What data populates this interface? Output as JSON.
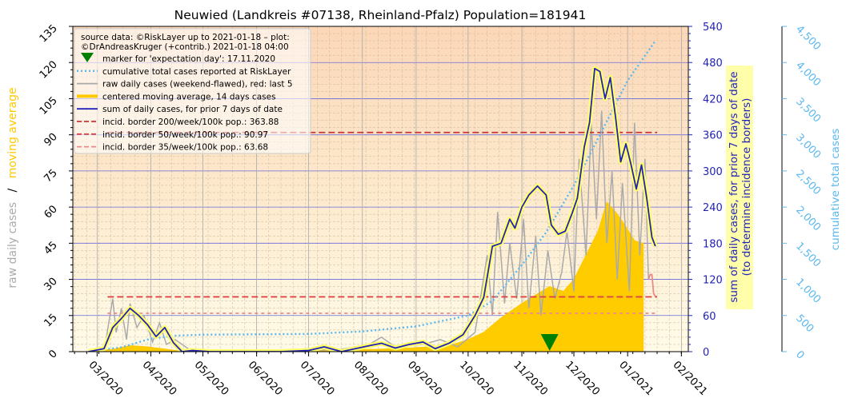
{
  "chart_data": {
    "type": "line",
    "title": "Neuwied (Landkreis #07138, Rheinland-Pfalz) Population=181941",
    "source_note": "source data: ©RiskLayer up to 2021-01-18 – plot:\n©DrAndreasKruger (+contrib.) 2021-01-18 04:00",
    "ylabel_left_part1": "raw daily cases",
    "ylabel_left_sep": "/",
    "ylabel_left_part2": "moving average",
    "ylabel_right1_line1": "sum of daily cases, for prior 7 days of date",
    "ylabel_right1_line2": "(to determine incidence borders)",
    "ylabel_right2": "cumulative total cases",
    "x_ticks": [
      "03/2020",
      "04/2020",
      "05/2020",
      "06/2020",
      "07/2020",
      "08/2020",
      "09/2020",
      "10/2020",
      "11/2020",
      "12/2020",
      "01/2021",
      "02/2021"
    ],
    "yticks_left": [
      "0",
      "15",
      "30",
      "45",
      "60",
      "75",
      "90",
      "105",
      "120",
      "135"
    ],
    "yticks_right1": [
      "0",
      "60",
      "120",
      "180",
      "240",
      "300",
      "360",
      "420",
      "480",
      "540"
    ],
    "yticks_right2": [
      "0",
      "500",
      "1,000",
      "1,500",
      "2,000",
      "2,500",
      "3,000",
      "3,500",
      "4,000",
      "4,500"
    ],
    "ylim_left": [
      0,
      135
    ],
    "ylim_right1": [
      0,
      540
    ],
    "ylim_right2": [
      0,
      4500
    ],
    "legend": [
      {
        "label": "marker for 'expectation day': 17.11.2020",
        "kind": "marker",
        "color": "#008000"
      },
      {
        "label": "cumulative total cases reported at RiskLayer",
        "kind": "dotted",
        "color": "#5bb8f0"
      },
      {
        "label": "raw daily cases (weekend-flawed), red: last 5",
        "kind": "line",
        "color": "#aaaaaa"
      },
      {
        "label": "centered moving average, 14 days cases",
        "kind": "thick",
        "color": "#ffc800"
      },
      {
        "label": "sum of daily cases, for prior 7 days of date",
        "kind": "line",
        "color": "#2222bb"
      },
      {
        "label": "incid. border 200/week/100k pop.: 363.88",
        "kind": "dashed",
        "color": "#cc3333"
      },
      {
        "label": "incid. border 50/week/100k pop.: 90.97",
        "kind": "dashed",
        "color": "#dd4444"
      },
      {
        "label": "incid. border 35/week/100k pop.: 63.68",
        "kind": "dashed",
        "color": "#ee8888"
      }
    ],
    "incidence_borders": [
      363.88,
      90.97,
      63.68
    ],
    "expectation_day": "2020-11-17",
    "weekly_sum": {
      "dates": [
        "2020-02-25",
        "2020-03-05",
        "2020-03-10",
        "2020-03-15",
        "2020-03-20",
        "2020-03-25",
        "2020-03-30",
        "2020-04-04",
        "2020-04-09",
        "2020-04-14",
        "2020-04-19",
        "2020-04-25",
        "2020-05-05",
        "2020-05-20",
        "2020-06-15",
        "2020-07-01",
        "2020-07-10",
        "2020-07-20",
        "2020-07-28",
        "2020-08-05",
        "2020-08-12",
        "2020-08-20",
        "2020-08-28",
        "2020-09-05",
        "2020-09-12",
        "2020-09-20",
        "2020-09-28",
        "2020-10-05",
        "2020-10-10",
        "2020-10-15",
        "2020-10-20",
        "2020-10-25",
        "2020-10-28",
        "2020-11-01",
        "2020-11-05",
        "2020-11-10",
        "2020-11-15",
        "2020-11-18",
        "2020-11-22",
        "2020-11-26",
        "2020-11-30",
        "2020-12-03",
        "2020-12-07",
        "2020-12-10",
        "2020-12-13",
        "2020-12-16",
        "2020-12-19",
        "2020-12-22",
        "2020-12-25",
        "2020-12-28",
        "2020-12-31",
        "2021-01-03",
        "2021-01-06",
        "2021-01-09",
        "2021-01-12",
        "2021-01-15",
        "2021-01-17"
      ],
      "values": [
        0,
        5,
        40,
        55,
        72,
        60,
        45,
        25,
        40,
        15,
        0,
        2,
        0,
        0,
        0,
        2,
        8,
        0,
        5,
        10,
        14,
        6,
        12,
        16,
        5,
        14,
        28,
        60,
        90,
        175,
        180,
        220,
        205,
        240,
        260,
        275,
        260,
        210,
        195,
        200,
        230,
        255,
        340,
        380,
        470,
        465,
        420,
        455,
        390,
        315,
        345,
        310,
        270,
        310,
        255,
        190,
        175
      ]
    },
    "moving_average": {
      "dates": [
        "2020-02-25",
        "2020-03-10",
        "2020-03-20",
        "2020-03-30",
        "2020-04-10",
        "2020-04-20",
        "2020-05-05",
        "2020-06-15",
        "2020-07-10",
        "2020-08-10",
        "2020-08-28",
        "2020-09-20",
        "2020-10-01",
        "2020-10-10",
        "2020-10-20",
        "2020-11-01",
        "2020-11-10",
        "2020-11-17",
        "2020-11-25",
        "2020-12-01",
        "2020-12-08",
        "2020-12-15",
        "2020-12-20",
        "2020-12-25",
        "2020-12-30",
        "2021-01-05",
        "2021-01-10"
      ],
      "values": [
        0,
        1,
        2.5,
        2,
        1,
        0,
        0,
        0,
        0.5,
        1,
        1.5,
        2.5,
        5,
        8,
        14,
        20,
        24,
        27,
        25,
        30,
        40,
        50,
        62,
        58,
        53,
        46,
        45
      ]
    },
    "raw_daily": {
      "dates": [
        "2020-03-05",
        "2020-03-10",
        "2020-03-12",
        "2020-03-15",
        "2020-03-18",
        "2020-03-20",
        "2020-03-24",
        "2020-03-28",
        "2020-04-02",
        "2020-04-06",
        "2020-04-10",
        "2020-04-15",
        "2020-04-25",
        "2020-06-15",
        "2020-07-20",
        "2020-08-05",
        "2020-08-12",
        "2020-08-20",
        "2020-09-05",
        "2020-09-15",
        "2020-09-25",
        "2020-10-05",
        "2020-10-12",
        "2020-10-15",
        "2020-10-18",
        "2020-10-22",
        "2020-10-25",
        "2020-10-29",
        "2020-11-02",
        "2020-11-05",
        "2020-11-09",
        "2020-11-12",
        "2020-11-16",
        "2020-11-20",
        "2020-11-24",
        "2020-11-27",
        "2020-12-01",
        "2020-12-04",
        "2020-12-08",
        "2020-12-11",
        "2020-12-14",
        "2020-12-17",
        "2020-12-20",
        "2020-12-23",
        "2020-12-26",
        "2020-12-29",
        "2021-01-02",
        "2021-01-05",
        "2021-01-08",
        "2021-01-11",
        "2021-01-13"
      ],
      "values": [
        0,
        22,
        8,
        18,
        5,
        20,
        10,
        15,
        4,
        12,
        3,
        5,
        0,
        0,
        1,
        3,
        6,
        2,
        3,
        5,
        2,
        8,
        40,
        15,
        58,
        20,
        45,
        22,
        55,
        18,
        48,
        15,
        42,
        22,
        33,
        50,
        25,
        80,
        40,
        95,
        55,
        100,
        45,
        75,
        30,
        70,
        25,
        95,
        40,
        80,
        30
      ]
    },
    "raw_daily_last5": {
      "dates": [
        "2021-01-13",
        "2021-01-14",
        "2021-01-15",
        "2021-01-16",
        "2021-01-17"
      ],
      "values": [
        30,
        32,
        32,
        24,
        23
      ]
    },
    "cumulative": {
      "dates": [
        "2020-02-25",
        "2020-03-15",
        "2020-04-01",
        "2020-04-15",
        "2020-05-01",
        "2020-06-01",
        "2020-07-01",
        "2020-08-01",
        "2020-09-01",
        "2020-10-01",
        "2020-10-15",
        "2020-11-01",
        "2020-11-15",
        "2020-12-01",
        "2020-12-15",
        "2021-01-01",
        "2021-01-17"
      ],
      "values": [
        0,
        60,
        180,
        220,
        235,
        240,
        245,
        280,
        350,
        500,
        700,
        1200,
        1650,
        2300,
        2950,
        3750,
        4300
      ]
    }
  }
}
